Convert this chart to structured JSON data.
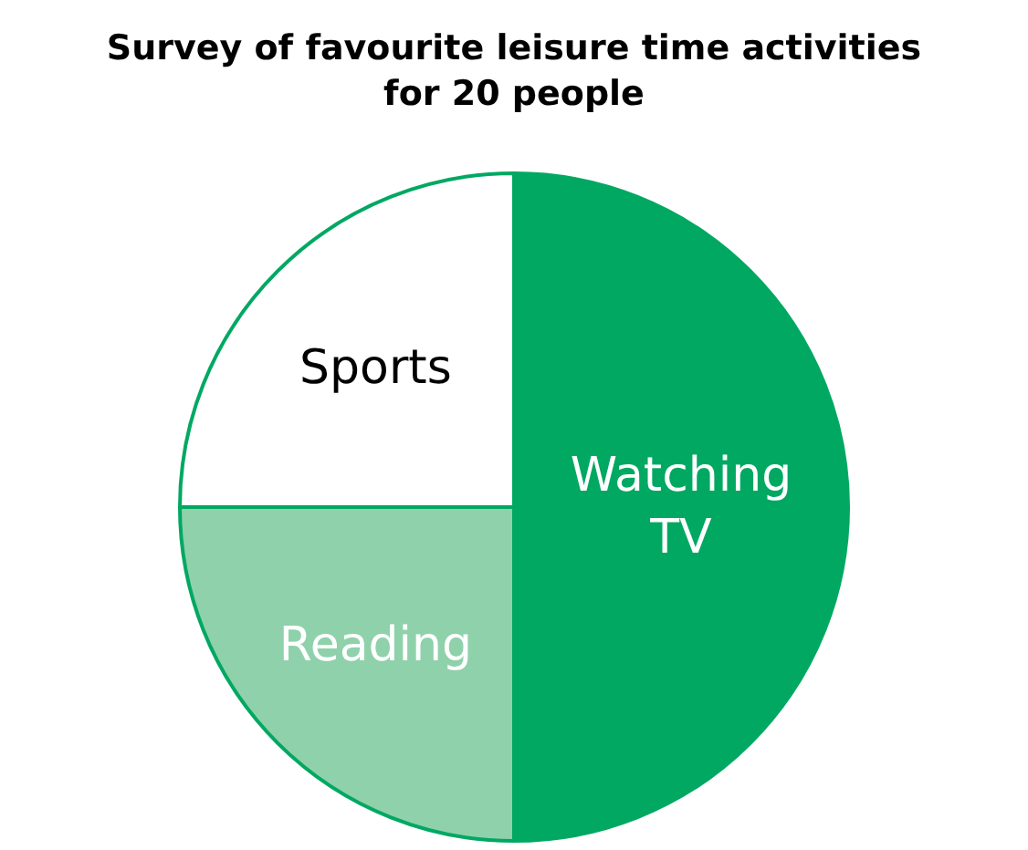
{
  "chart_data": {
    "type": "pie",
    "title": "Survey of favourite leisure time activities\nfor 20 people",
    "categories": [
      "Watching TV",
      "Reading",
      "Sports"
    ],
    "values": [
      50,
      25,
      25
    ],
    "colors": [
      "#00a862",
      "#8fd1ab",
      "#ffffff"
    ],
    "legend": false
  }
}
